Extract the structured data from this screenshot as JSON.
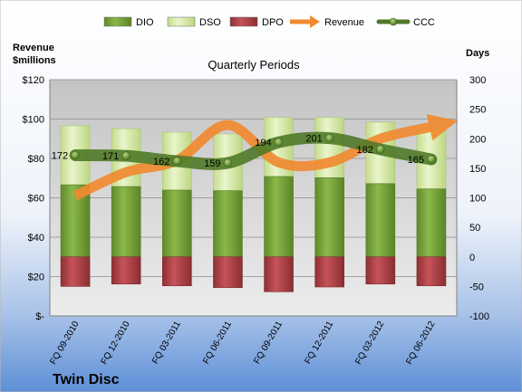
{
  "chart_data": {
    "type": "bar",
    "title": "Quarterly Periods",
    "company": "Twin Disc",
    "left_axis_title": [
      "Revenue",
      "$millions"
    ],
    "right_axis_title": "Days",
    "categories": [
      "FQ 09-2010",
      "FQ 12-2010",
      "FQ 03-2011",
      "FQ 06-2011",
      "FQ 09-2011",
      "FQ 12-2011",
      "FQ 03-2012",
      "FQ 06-2012"
    ],
    "left_ylim": [
      0,
      120
    ],
    "left_ticks": [
      0,
      20,
      40,
      60,
      80,
      100,
      120
    ],
    "left_tick_labels": [
      "$-",
      "$20",
      "$40",
      "$60",
      "$80",
      "$100",
      "$120"
    ],
    "right_ylim": [
      -100,
      300
    ],
    "right_ticks": [
      -100,
      -50,
      0,
      50,
      100,
      150,
      200,
      250,
      300
    ],
    "right_tick_labels": [
      "-100",
      "-50",
      "0",
      "50",
      "100",
      "150",
      "200",
      "250",
      "300"
    ],
    "legend": [
      {
        "name": "DIO",
        "kind": "bar",
        "color": "#76a33a"
      },
      {
        "name": "DSO",
        "kind": "bar",
        "color": "#d7e9a8"
      },
      {
        "name": "DPO",
        "kind": "bar",
        "color": "#b3454b"
      },
      {
        "name": "Revenue",
        "kind": "arrow",
        "color": "#f08a30"
      },
      {
        "name": "CCC",
        "kind": "line",
        "color": "#4f7a28"
      }
    ],
    "series": [
      {
        "name": "DIO",
        "axis": "right",
        "values": [
          122,
          119,
          113,
          112,
          136,
          134,
          124,
          115
        ]
      },
      {
        "name": "DSO",
        "axis": "right",
        "values": [
          100,
          98,
          98,
          96,
          100,
          102,
          104,
          100
        ]
      },
      {
        "name": "DPO",
        "axis": "right",
        "values": [
          -50,
          -46,
          -49,
          -52,
          -59,
          -51,
          -46,
          -49
        ]
      },
      {
        "name": "CCC",
        "axis": "right",
        "values": [
          172,
          171,
          162,
          159,
          194,
          201,
          182,
          165
        ]
      },
      {
        "name": "Revenue",
        "axis": "left",
        "values": [
          61,
          73,
          79,
          97,
          78,
          78,
          90,
          96
        ]
      }
    ],
    "ccc_labels": [
      "172",
      "171",
      "162",
      "159",
      "194",
      "201",
      "182",
      "165"
    ],
    "grid": true,
    "legend_position": "top"
  }
}
